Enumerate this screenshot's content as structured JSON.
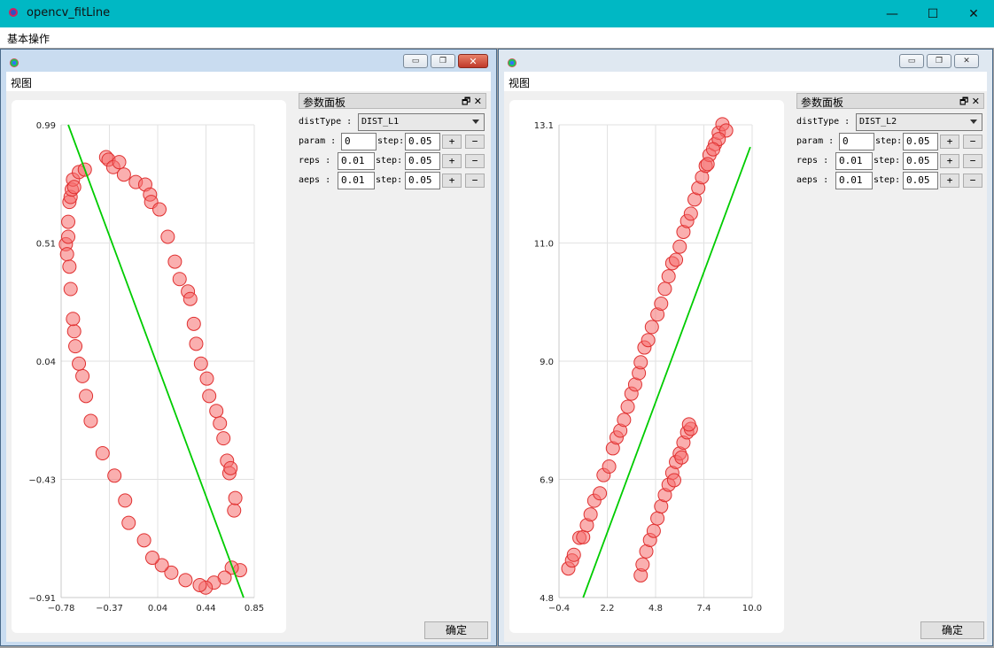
{
  "app": {
    "title": "opencv_fitLine",
    "menu": [
      "基本操作"
    ]
  },
  "windows": [
    {
      "menu": "视图",
      "panel": {
        "title": "参数面板",
        "distType_label": "distType :",
        "distType": "DIST_L1",
        "param_label": "param :",
        "param": "0",
        "param_step": "0.05",
        "reps_label": "reps :",
        "reps": "0.01",
        "reps_step": "0.05",
        "aeps_label": "aeps :",
        "aeps": "0.01",
        "aeps_step": "0.05",
        "step_label": "step:",
        "plus": "+",
        "minus": "−"
      },
      "ok_label": "确定",
      "chart_data": {
        "type": "scatter",
        "x_ticks": [
          "−0.78",
          "−0.37",
          "0.04",
          "0.44",
          "0.85"
        ],
        "y_ticks": [
          "0.99",
          "0.51",
          "0.04",
          "−0.43",
          "−0.91"
        ],
        "xlim": [
          -0.78,
          0.85
        ],
        "ylim": [
          -0.91,
          0.99
        ],
        "grid": true,
        "points": [
          [
            -0.74,
            0.51
          ],
          [
            -0.72,
            0.54
          ],
          [
            -0.72,
            0.6
          ],
          [
            -0.71,
            0.68
          ],
          [
            -0.7,
            0.7
          ],
          [
            -0.69,
            0.73
          ],
          [
            -0.68,
            0.77
          ],
          [
            -0.67,
            0.74
          ],
          [
            -0.63,
            0.8
          ],
          [
            -0.58,
            0.81
          ],
          [
            -0.4,
            0.86
          ],
          [
            -0.38,
            0.85
          ],
          [
            -0.34,
            0.82
          ],
          [
            -0.29,
            0.84
          ],
          [
            -0.25,
            0.79
          ],
          [
            -0.15,
            0.76
          ],
          [
            -0.07,
            0.75
          ],
          [
            -0.03,
            0.71
          ],
          [
            -0.02,
            0.68
          ],
          [
            0.05,
            0.65
          ],
          [
            0.12,
            0.54
          ],
          [
            0.18,
            0.44
          ],
          [
            0.22,
            0.37
          ],
          [
            0.29,
            0.32
          ],
          [
            0.31,
            0.29
          ],
          [
            0.34,
            0.19
          ],
          [
            0.36,
            0.11
          ],
          [
            0.4,
            0.03
          ],
          [
            0.45,
            -0.03
          ],
          [
            0.47,
            -0.1
          ],
          [
            0.53,
            -0.16
          ],
          [
            0.56,
            -0.21
          ],
          [
            0.59,
            -0.27
          ],
          [
            0.62,
            -0.36
          ],
          [
            0.64,
            -0.41
          ],
          [
            0.65,
            -0.39
          ],
          [
            0.68,
            -0.56
          ],
          [
            0.69,
            -0.51
          ],
          [
            0.73,
            -0.8
          ],
          [
            0.66,
            -0.79
          ],
          [
            0.6,
            -0.83
          ],
          [
            0.51,
            -0.85
          ],
          [
            0.44,
            -0.87
          ],
          [
            0.39,
            -0.86
          ],
          [
            0.27,
            -0.84
          ],
          [
            0.15,
            -0.81
          ],
          [
            0.07,
            -0.78
          ],
          [
            -0.01,
            -0.75
          ],
          [
            -0.08,
            -0.68
          ],
          [
            -0.21,
            -0.61
          ],
          [
            -0.24,
            -0.52
          ],
          [
            -0.33,
            -0.42
          ],
          [
            -0.43,
            -0.33
          ],
          [
            -0.53,
            -0.2
          ],
          [
            -0.57,
            -0.1
          ],
          [
            -0.6,
            -0.02
          ],
          [
            -0.63,
            0.03
          ],
          [
            -0.66,
            0.1
          ],
          [
            -0.67,
            0.16
          ],
          [
            -0.68,
            0.21
          ],
          [
            -0.7,
            0.33
          ],
          [
            -0.71,
            0.42
          ],
          [
            -0.73,
            0.47
          ]
        ],
        "fit_line": [
          [
            -0.72,
            0.99
          ],
          [
            0.76,
            -0.91
          ]
        ]
      }
    },
    {
      "menu": "视图",
      "panel": {
        "title": "参数面板",
        "distType_label": "distType :",
        "distType": "DIST_L2",
        "param_label": "param :",
        "param": "0",
        "param_step": "0.05",
        "reps_label": "reps :",
        "reps": "0.01",
        "reps_step": "0.05",
        "aeps_label": "aeps :",
        "aeps": "0.01",
        "aeps_step": "0.05",
        "step_label": "step:",
        "plus": "+",
        "minus": "−"
      },
      "ok_label": "确定",
      "chart_data": {
        "type": "scatter",
        "x_ticks": [
          "−0.4",
          "2.2",
          "4.8",
          "7.4",
          "10.0"
        ],
        "y_ticks": [
          "13.1",
          "11.0",
          "9.0",
          "6.9",
          "4.8"
        ],
        "xlim": [
          -0.4,
          10.0
        ],
        "ylim": [
          4.8,
          13.1
        ],
        "grid": true,
        "points": [
          [
            0.1,
            5.31
          ],
          [
            0.3,
            5.45
          ],
          [
            0.4,
            5.55
          ],
          [
            0.7,
            5.85
          ],
          [
            0.9,
            5.86
          ],
          [
            1.1,
            6.07
          ],
          [
            1.3,
            6.26
          ],
          [
            1.5,
            6.5
          ],
          [
            1.8,
            6.63
          ],
          [
            2.0,
            6.95
          ],
          [
            2.3,
            7.1
          ],
          [
            2.5,
            7.42
          ],
          [
            2.7,
            7.61
          ],
          [
            2.9,
            7.73
          ],
          [
            3.1,
            7.92
          ],
          [
            3.3,
            8.15
          ],
          [
            3.5,
            8.38
          ],
          [
            3.7,
            8.54
          ],
          [
            3.9,
            8.74
          ],
          [
            4.0,
            8.93
          ],
          [
            4.2,
            9.19
          ],
          [
            4.4,
            9.32
          ],
          [
            4.6,
            9.55
          ],
          [
            4.9,
            9.77
          ],
          [
            5.1,
            9.96
          ],
          [
            5.3,
            10.22
          ],
          [
            5.5,
            10.44
          ],
          [
            5.7,
            10.67
          ],
          [
            5.9,
            10.73
          ],
          [
            6.1,
            10.96
          ],
          [
            6.3,
            11.22
          ],
          [
            6.5,
            11.41
          ],
          [
            6.7,
            11.54
          ],
          [
            6.9,
            11.79
          ],
          [
            7.1,
            11.99
          ],
          [
            7.3,
            12.18
          ],
          [
            7.5,
            12.38
          ],
          [
            7.7,
            12.57
          ],
          [
            8.0,
            12.76
          ],
          [
            8.2,
            12.96
          ],
          [
            8.4,
            13.11
          ],
          [
            8.6,
            13.0
          ],
          [
            8.2,
            12.85
          ],
          [
            7.9,
            12.67
          ],
          [
            7.6,
            12.41
          ],
          [
            4.0,
            5.19
          ],
          [
            4.1,
            5.38
          ],
          [
            4.3,
            5.61
          ],
          [
            4.5,
            5.81
          ],
          [
            4.7,
            5.97
          ],
          [
            4.9,
            6.19
          ],
          [
            5.1,
            6.4
          ],
          [
            5.3,
            6.6
          ],
          [
            5.5,
            6.78
          ],
          [
            5.7,
            6.99
          ],
          [
            5.9,
            7.18
          ],
          [
            6.1,
            7.33
          ],
          [
            6.3,
            7.52
          ],
          [
            6.5,
            7.7
          ],
          [
            6.7,
            7.76
          ],
          [
            6.6,
            7.84
          ],
          [
            6.2,
            7.26
          ],
          [
            5.8,
            6.86
          ]
        ],
        "fit_line": [
          [
            0.9,
            4.8
          ],
          [
            9.9,
            12.71
          ]
        ]
      }
    }
  ]
}
